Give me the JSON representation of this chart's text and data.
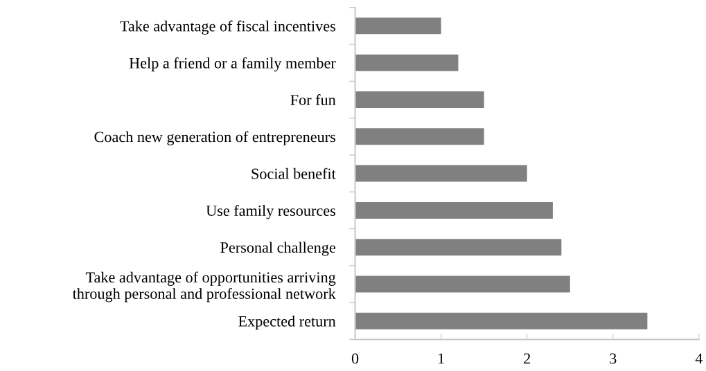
{
  "chart_data": {
    "type": "bar",
    "orientation": "horizontal",
    "categories": [
      "Take advantage of fiscal incentives",
      "Help a friend or a family member",
      "For fun",
      "Coach new generation of entrepreneurs",
      "Social benefit",
      "Use family resources",
      "Personal challenge",
      "Take advantage of opportunities arriving\nthrough personal and professional network",
      "Expected return"
    ],
    "values": [
      1.0,
      1.2,
      1.5,
      1.5,
      2.0,
      2.3,
      2.4,
      2.5,
      3.4
    ],
    "color": "#808080",
    "xlim": [
      0,
      4
    ],
    "xticks": [
      0,
      1,
      2,
      3,
      4
    ],
    "grid": false,
    "legend": false
  }
}
